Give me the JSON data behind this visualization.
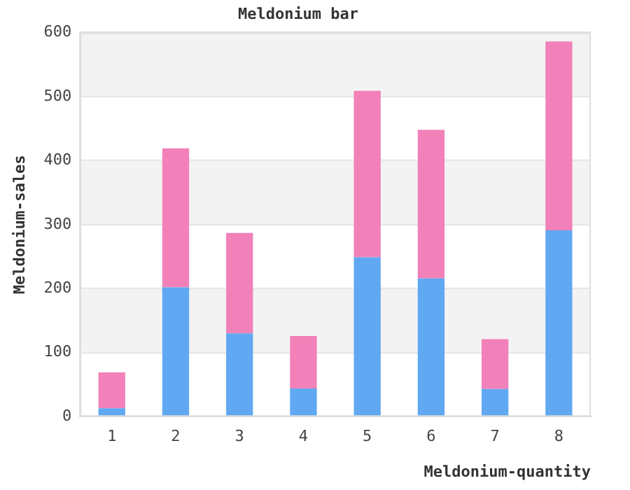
{
  "chart_data": {
    "type": "bar",
    "title": "Meldonium bar",
    "xlabel": "Meldonium-quantity",
    "ylabel": "Meldonium-sales",
    "categories": [
      "1",
      "2",
      "3",
      "4",
      "5",
      "6",
      "7",
      "8"
    ],
    "series": [
      {
        "color": "#60a8f2",
        "values": [
          13,
          202,
          130,
          44,
          249,
          216,
          43,
          291
        ]
      },
      {
        "color": "#f281b9",
        "values": [
          56,
          217,
          157,
          82,
          260,
          232,
          78,
          295
        ]
      }
    ],
    "stacked": true,
    "ylim": [
      0,
      600
    ],
    "yticks": [
      0,
      100,
      200,
      300,
      400,
      500,
      600
    ],
    "grid": "y"
  }
}
